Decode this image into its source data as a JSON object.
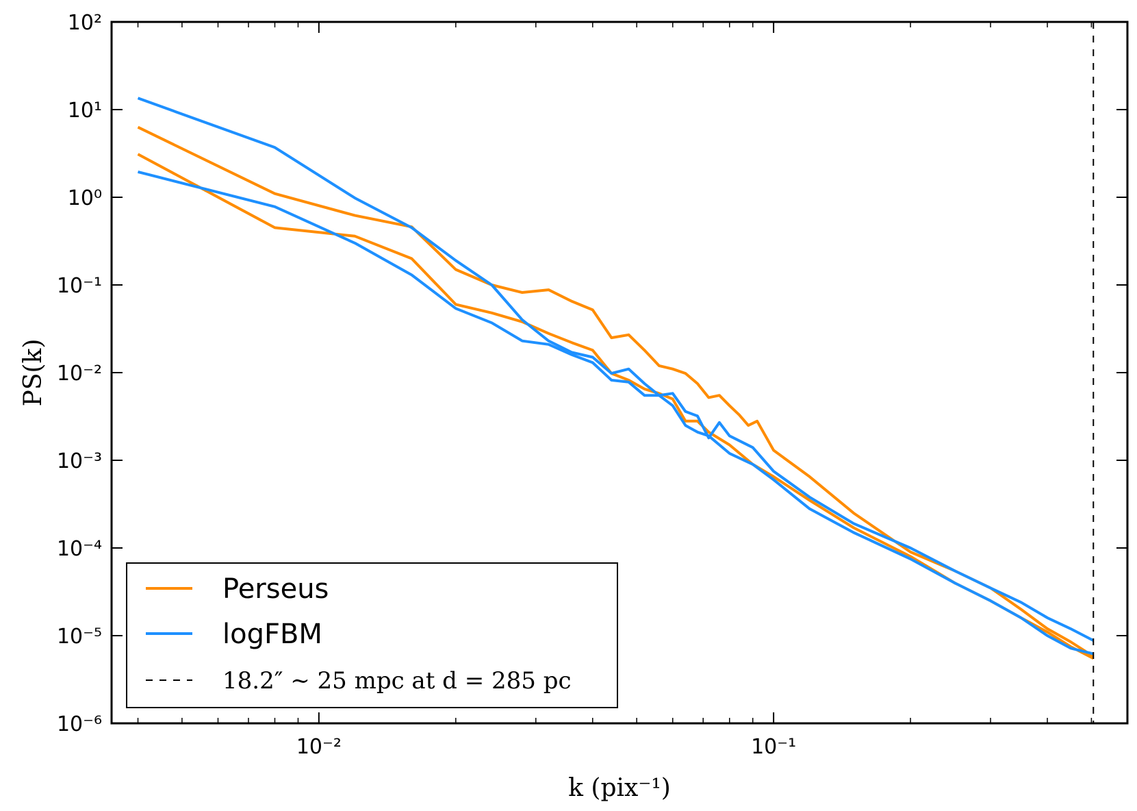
{
  "chart_data": {
    "type": "line",
    "xscale": "log",
    "yscale": "log",
    "xlim": [
      0.0035,
      0.6
    ],
    "ylim": [
      1e-06,
      100
    ],
    "xlabel": "k (pix⁻¹)",
    "ylabel": "PS(k)",
    "x_tick_labels": [
      "10⁻²",
      "10⁻¹"
    ],
    "y_tick_labels": [
      "10²",
      "10¹",
      "10⁰",
      "10⁻¹",
      "10⁻²",
      "10⁻³",
      "10⁻⁴",
      "10⁻⁵",
      "10⁻⁶"
    ],
    "grid": false,
    "legend_position": "lower-left",
    "vline": {
      "x": 0.505,
      "style": "dashed",
      "color": "#000000",
      "label": "18.2″ ∼ 25 mpc at d = 285 pc"
    },
    "series": [
      {
        "name": "Perseus",
        "color": "#ff8c00",
        "x": [
          0.004,
          0.008,
          0.012,
          0.016,
          0.02,
          0.024,
          0.028,
          0.032,
          0.036,
          0.04,
          0.044,
          0.048,
          0.052,
          0.056,
          0.06,
          0.064,
          0.068,
          0.072,
          0.076,
          0.08,
          0.084,
          0.088,
          0.092,
          0.1,
          0.12,
          0.15,
          0.2,
          0.25,
          0.3,
          0.35,
          0.4,
          0.45,
          0.505
        ],
        "values": [
          6.3,
          1.1,
          0.62,
          0.46,
          0.15,
          0.1,
          0.082,
          0.088,
          0.065,
          0.052,
          0.025,
          0.027,
          0.018,
          0.012,
          0.011,
          0.0098,
          0.0075,
          0.0052,
          0.0055,
          0.0042,
          0.0033,
          0.0025,
          0.0028,
          0.0013,
          0.00065,
          0.00025,
          9e-05,
          5.5e-05,
          3.5e-05,
          2e-05,
          1.2e-05,
          8.5e-06,
          5.8e-06
        ]
      },
      {
        "name": "",
        "color": "#ff8c00",
        "x": [
          0.004,
          0.008,
          0.012,
          0.016,
          0.02,
          0.024,
          0.028,
          0.032,
          0.036,
          0.04,
          0.044,
          0.048,
          0.052,
          0.056,
          0.06,
          0.064,
          0.068,
          0.072,
          0.08,
          0.09,
          0.1,
          0.12,
          0.15,
          0.2,
          0.25,
          0.3,
          0.35,
          0.4,
          0.45,
          0.505
        ],
        "values": [
          3.1,
          0.45,
          0.36,
          0.2,
          0.06,
          0.048,
          0.038,
          0.028,
          0.022,
          0.018,
          0.0098,
          0.0082,
          0.0065,
          0.0058,
          0.005,
          0.0028,
          0.0028,
          0.0021,
          0.0015,
          0.0009,
          0.00065,
          0.00035,
          0.00017,
          8e-05,
          4e-05,
          2.5e-05,
          1.6e-05,
          1.1e-05,
          7.5e-06,
          5.5e-06
        ]
      },
      {
        "name": "logFBM",
        "color": "#1e90ff",
        "x": [
          0.004,
          0.008,
          0.012,
          0.016,
          0.02,
          0.024,
          0.028,
          0.032,
          0.036,
          0.04,
          0.044,
          0.048,
          0.052,
          0.056,
          0.06,
          0.064,
          0.068,
          0.072,
          0.076,
          0.08,
          0.09,
          0.1,
          0.12,
          0.15,
          0.2,
          0.25,
          0.3,
          0.35,
          0.4,
          0.45,
          0.505
        ],
        "values": [
          13.5,
          3.7,
          0.98,
          0.45,
          0.19,
          0.1,
          0.04,
          0.023,
          0.017,
          0.015,
          0.0098,
          0.011,
          0.0075,
          0.0055,
          0.0058,
          0.0036,
          0.0032,
          0.0018,
          0.0027,
          0.0019,
          0.0014,
          0.00075,
          0.00038,
          0.00019,
          0.0001,
          5.5e-05,
          3.5e-05,
          2.4e-05,
          1.6e-05,
          1.2e-05,
          8.8e-06
        ]
      },
      {
        "name": "",
        "color": "#1e90ff",
        "x": [
          0.004,
          0.008,
          0.012,
          0.016,
          0.02,
          0.024,
          0.028,
          0.032,
          0.036,
          0.04,
          0.044,
          0.048,
          0.052,
          0.056,
          0.06,
          0.064,
          0.068,
          0.072,
          0.08,
          0.09,
          0.1,
          0.12,
          0.15,
          0.2,
          0.25,
          0.3,
          0.35,
          0.4,
          0.45,
          0.505
        ],
        "values": [
          1.95,
          0.78,
          0.3,
          0.13,
          0.054,
          0.037,
          0.023,
          0.021,
          0.016,
          0.013,
          0.0082,
          0.0078,
          0.0055,
          0.0055,
          0.0042,
          0.0025,
          0.0021,
          0.0019,
          0.0012,
          0.0009,
          0.0006,
          0.00028,
          0.00015,
          7.5e-05,
          4e-05,
          2.5e-05,
          1.6e-05,
          1e-05,
          7.2e-06,
          6.2e-06
        ]
      }
    ]
  }
}
